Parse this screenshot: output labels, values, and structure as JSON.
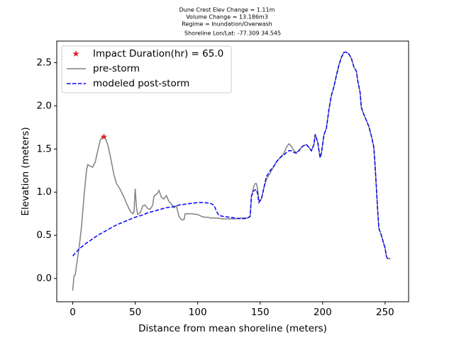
{
  "chart_data": {
    "type": "line",
    "title": [
      "Dune Crest Elev Change = 1.11m",
      "Volume Change = 13.186m3",
      "Regime = Inundation/Overwash",
      "Shoreline Lon/Lat: -77.309 34.545"
    ],
    "xlabel": "Distance from mean shoreline (meters)",
    "ylabel": "Elevation (meters)",
    "xlim": [
      -12.8,
      268.8
    ],
    "ylim": [
      -0.27,
      2.75
    ],
    "xticks": [
      0,
      50,
      100,
      150,
      200,
      250
    ],
    "yticks": [
      {
        "value": 0,
        "label": "0.0"
      },
      {
        "value": 0.5,
        "label": "0.5"
      },
      {
        "value": 1,
        "label": "1.0"
      },
      {
        "value": 1.5,
        "label": "1.5"
      },
      {
        "value": 2,
        "label": "2.0"
      },
      {
        "value": 2.5,
        "label": "2.5"
      }
    ],
    "legend": "upper left",
    "series": [
      {
        "name": "Impact Duration(hr) = 65.0",
        "color": "#d62728",
        "marker": "star",
        "x": [
          25
        ],
        "values": [
          1.64
        ]
      },
      {
        "name": "pre-storm",
        "color": "#808080",
        "linestyle": "solid",
        "x": [
          0,
          1,
          2,
          3,
          5,
          7,
          9,
          11,
          12,
          14,
          16,
          18,
          20,
          22,
          24,
          26,
          28,
          30,
          33,
          35,
          38,
          41,
          43,
          46,
          48,
          49,
          50,
          51,
          52,
          54,
          56,
          58,
          60,
          62,
          64,
          65,
          68,
          69,
          71,
          73,
          75,
          77,
          79,
          81,
          83,
          85,
          87,
          89,
          90,
          95,
          100,
          103,
          105,
          108,
          110,
          115,
          120,
          125,
          130,
          135,
          140,
          142,
          143,
          145,
          146,
          147,
          148,
          149,
          151,
          153,
          155,
          158,
          161,
          163,
          166,
          169,
          171,
          173,
          175,
          177,
          179,
          181,
          183,
          185,
          187,
          189,
          191,
          193,
          194,
          196,
          198,
          199,
          201,
          203,
          205,
          207,
          209,
          211,
          213,
          215,
          217,
          219,
          221,
          223,
          225,
          227,
          228,
          230,
          231,
          233,
          235,
          237,
          239,
          241,
          242,
          243,
          244,
          245,
          247,
          249,
          250,
          251,
          252,
          254
        ],
        "values": [
          -0.14,
          0.03,
          0.04,
          0.15,
          0.35,
          0.6,
          0.95,
          1.25,
          1.32,
          1.3,
          1.29,
          1.35,
          1.48,
          1.6,
          1.65,
          1.63,
          1.55,
          1.42,
          1.2,
          1.1,
          1.03,
          0.94,
          0.87,
          0.78,
          0.75,
          0.77,
          1.04,
          0.82,
          0.74,
          0.76,
          0.84,
          0.85,
          0.81,
          0.8,
          0.85,
          0.95,
          0.99,
          1.02,
          0.94,
          0.92,
          0.96,
          0.89,
          0.86,
          0.82,
          0.84,
          0.72,
          0.68,
          0.68,
          0.75,
          0.75,
          0.74,
          0.72,
          0.71,
          0.71,
          0.7,
          0.7,
          0.69,
          0.69,
          0.69,
          0.7,
          0.7,
          0.72,
          0.95,
          1.07,
          1.1,
          1.1,
          1.03,
          0.9,
          0.92,
          1.05,
          1.15,
          1.22,
          1.3,
          1.35,
          1.4,
          1.45,
          1.52,
          1.56,
          1.53,
          1.48,
          1.46,
          1.48,
          1.52,
          1.54,
          1.55,
          1.52,
          1.48,
          1.55,
          1.67,
          1.58,
          1.4,
          1.45,
          1.66,
          1.74,
          1.95,
          2.12,
          2.22,
          2.35,
          2.47,
          2.56,
          2.62,
          2.62,
          2.6,
          2.55,
          2.45,
          2.4,
          2.3,
          2.15,
          1.98,
          1.9,
          1.83,
          1.76,
          1.65,
          1.52,
          1.3,
          1.05,
          0.8,
          0.58,
          0.5,
          0.4,
          0.35,
          0.26,
          0.23,
          0.23
        ]
      },
      {
        "name": "modeled post-storm",
        "color": "#0000ff",
        "linestyle": "dashed",
        "x": [
          0,
          5,
          10,
          15,
          20,
          25,
          30,
          35,
          40,
          45,
          50,
          55,
          60,
          65,
          70,
          75,
          80,
          85,
          90,
          95,
          100,
          105,
          110,
          113,
          115,
          117,
          120,
          125,
          130,
          135,
          140,
          142,
          143,
          145,
          147,
          148,
          149,
          151,
          153,
          155,
          158,
          161,
          163,
          166,
          169,
          171,
          173,
          175,
          177,
          179,
          181,
          183,
          185,
          187,
          189,
          191,
          193,
          194,
          196,
          198,
          199,
          201,
          203,
          205,
          207,
          209,
          211,
          213,
          215,
          217,
          219,
          221,
          223,
          225,
          227,
          228,
          230,
          231,
          233,
          235,
          237,
          239,
          241,
          242,
          243,
          244,
          245,
          247,
          249,
          250,
          251,
          252,
          254
        ],
        "values": [
          0.26,
          0.34,
          0.4,
          0.45,
          0.5,
          0.54,
          0.58,
          0.62,
          0.65,
          0.68,
          0.71,
          0.73,
          0.76,
          0.78,
          0.8,
          0.82,
          0.83,
          0.85,
          0.86,
          0.87,
          0.88,
          0.88,
          0.87,
          0.85,
          0.78,
          0.73,
          0.72,
          0.71,
          0.7,
          0.69,
          0.7,
          0.72,
          0.95,
          1.02,
          1.03,
          0.98,
          0.88,
          0.92,
          1.05,
          1.18,
          1.25,
          1.3,
          1.35,
          1.4,
          1.43,
          1.46,
          1.48,
          1.48,
          1.46,
          1.45,
          1.48,
          1.52,
          1.54,
          1.55,
          1.52,
          1.48,
          1.55,
          1.67,
          1.58,
          1.4,
          1.45,
          1.66,
          1.74,
          1.95,
          2.12,
          2.22,
          2.35,
          2.47,
          2.56,
          2.62,
          2.62,
          2.6,
          2.55,
          2.45,
          2.4,
          2.3,
          2.15,
          1.98,
          1.9,
          1.83,
          1.76,
          1.65,
          1.52,
          1.3,
          1.05,
          0.8,
          0.58,
          0.5,
          0.4,
          0.35,
          0.26,
          0.23,
          0.23
        ]
      }
    ]
  }
}
